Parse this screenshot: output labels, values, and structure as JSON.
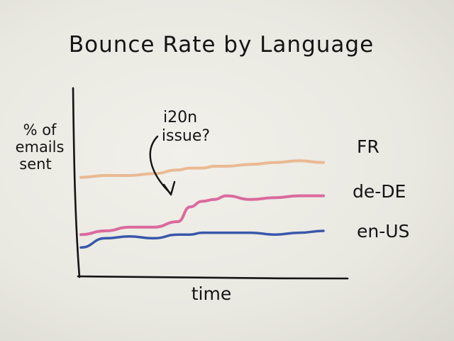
{
  "chart_data": {
    "type": "line",
    "title": "Bounce Rate by Language",
    "xlabel": "time",
    "ylabel": [
      "% of",
      "emails",
      "sent"
    ],
    "grid": false,
    "legend_placement": "right",
    "x": [
      0,
      10,
      20,
      30,
      40,
      45,
      50,
      55,
      60,
      70,
      80,
      90,
      100
    ],
    "ylim": [
      0,
      100
    ],
    "series": [
      {
        "name": "FR",
        "color": "#e9b38a",
        "values": [
          54,
          55,
          55,
          56,
          58,
          59,
          59,
          60,
          60,
          61,
          62,
          63,
          62
        ]
      },
      {
        "name": "de-DE",
        "color": "#d9639a",
        "values": [
          23,
          25,
          27,
          27,
          30,
          38,
          41,
          42,
          44,
          42,
          43,
          44,
          44
        ]
      },
      {
        "name": "en-US",
        "color": "#2f4fa8",
        "values": [
          16,
          21,
          22,
          21,
          23,
          23,
          24,
          24,
          24,
          24,
          23,
          24,
          25
        ]
      }
    ],
    "annotations": [
      {
        "lines": [
          "i20n",
          "issue?"
        ],
        "target_series": "de-DE",
        "target_x": 45
      }
    ]
  }
}
